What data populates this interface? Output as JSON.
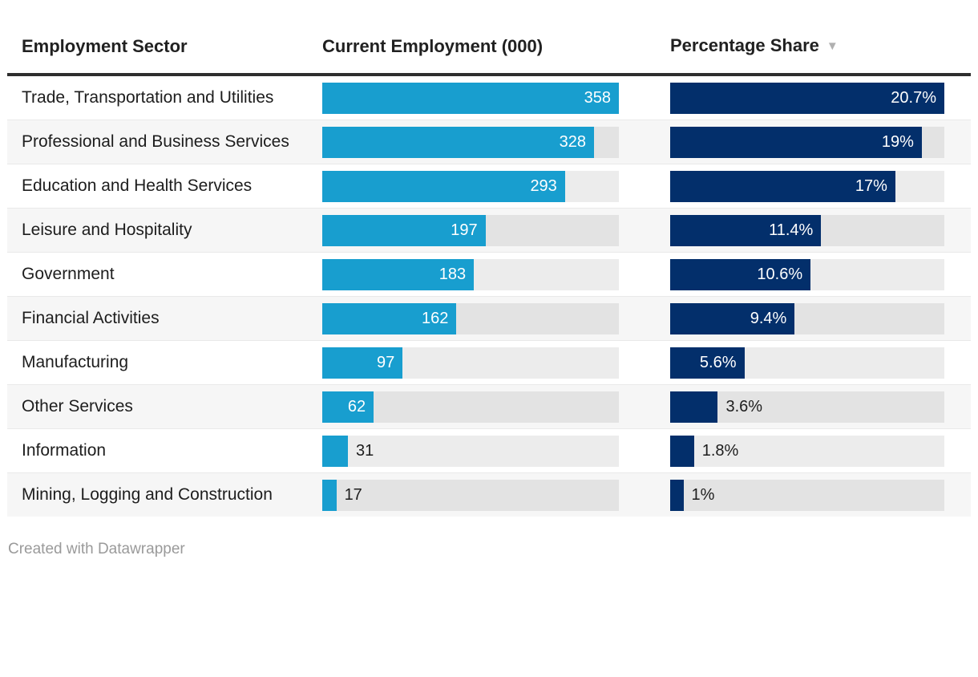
{
  "header": {
    "col_sector": "Employment Sector",
    "col_employment": "Current Employment (000)",
    "col_share": "Percentage Share",
    "sort_icon": "▼"
  },
  "chart_data": {
    "type": "table",
    "columns": [
      "Employment Sector",
      "Current Employment (000)",
      "Percentage Share"
    ],
    "sorted_by": "Percentage Share",
    "sort_direction": "descending",
    "employment_axis_max": 358,
    "share_axis_max": 20.7,
    "rows": [
      {
        "sector": "Trade, Transportation and Utilities",
        "employment": 358,
        "employment_label": "358",
        "share": 20.7,
        "share_label": "20.7%"
      },
      {
        "sector": "Professional and Business Services",
        "employment": 328,
        "employment_label": "328",
        "share": 19,
        "share_label": "19%"
      },
      {
        "sector": "Education and Health Services",
        "employment": 293,
        "employment_label": "293",
        "share": 17,
        "share_label": "17%"
      },
      {
        "sector": "Leisure and Hospitality",
        "employment": 197,
        "employment_label": "197",
        "share": 11.4,
        "share_label": "11.4%"
      },
      {
        "sector": "Government",
        "employment": 183,
        "employment_label": "183",
        "share": 10.6,
        "share_label": "10.6%"
      },
      {
        "sector": "Financial Activities",
        "employment": 162,
        "employment_label": "162",
        "share": 9.4,
        "share_label": "9.4%"
      },
      {
        "sector": "Manufacturing",
        "employment": 97,
        "employment_label": "97",
        "share": 5.6,
        "share_label": "5.6%"
      },
      {
        "sector": "Other Services",
        "employment": 62,
        "employment_label": "62",
        "share": 3.6,
        "share_label": "3.6%"
      },
      {
        "sector": "Information",
        "employment": 31,
        "employment_label": "31",
        "share": 1.8,
        "share_label": "1.8%"
      },
      {
        "sector": "Mining, Logging and Construction",
        "employment": 17,
        "employment_label": "17",
        "share": 1,
        "share_label": "1%"
      }
    ]
  },
  "colors": {
    "employment_bar": "#189ecf",
    "share_bar": "#032f6b",
    "row_stripe": "#f6f6f6",
    "bar_track": "#e9e9e9",
    "header_rule": "#2e2e2e",
    "text": "#1d1d1d",
    "sort_icon": "#b0b0b0",
    "footer_text": "#9a9a9a"
  },
  "footer": {
    "credit": "Created with Datawrapper"
  }
}
